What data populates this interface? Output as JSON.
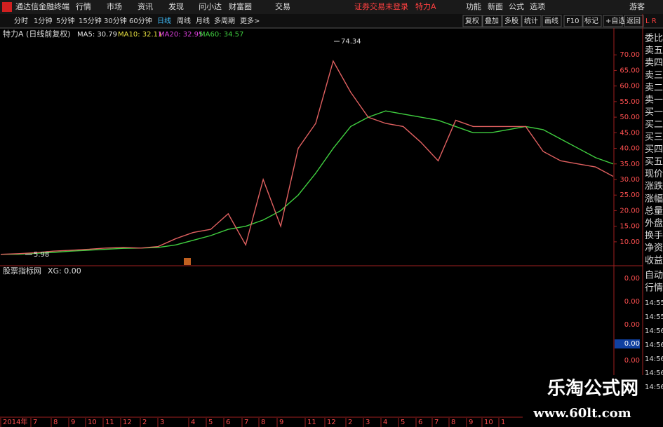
{
  "title_bar": {
    "app": "通达信金融终端",
    "menus": [
      "行情",
      "市场",
      "资讯",
      "发现",
      "问小达",
      "财富圈",
      "交易"
    ],
    "status": "证券交易未登录",
    "stock": "特力A",
    "right_menus": [
      "功能",
      "新面",
      "公式",
      "选项"
    ],
    "user": "游客"
  },
  "toolbar": {
    "periods": [
      "分时",
      "1分钟",
      "5分钟",
      "15分钟",
      "30分钟",
      "60分钟",
      "日线",
      "周线",
      "月线",
      "多周期",
      "更多>"
    ],
    "tools": [
      "复权",
      "叠加",
      "多股",
      "统计",
      "画线",
      "F10",
      "标记",
      "+自选",
      "返回"
    ]
  },
  "info": {
    "stock_label": "特力A (日线前复权)",
    "ma": [
      {
        "label": "MA5: 30.79",
        "color": "#e8e8e8"
      },
      {
        "label": "MA10: 32.11",
        "color": "#e8e040"
      },
      {
        "label": "MA20: 32.95",
        "color": "#e040e0"
      },
      {
        "label": "MA60: 34.57",
        "color": "#40d040"
      }
    ]
  },
  "main_chart": {
    "ylim": [
      3,
      75
    ],
    "yticks": [
      {
        "value": 70,
        "label": "70.00"
      },
      {
        "value": 65,
        "label": "65.00"
      },
      {
        "value": 60,
        "label": "60.00"
      },
      {
        "value": 55,
        "label": "55.00"
      },
      {
        "value": 50,
        "label": "50.00"
      },
      {
        "value": 45,
        "label": "45.00"
      },
      {
        "value": 40,
        "label": "40.00"
      },
      {
        "value": 35,
        "label": "35.00"
      },
      {
        "value": 30,
        "label": "30.00"
      },
      {
        "value": 25,
        "label": "25.00"
      },
      {
        "value": 20,
        "label": "20.00"
      },
      {
        "value": 15,
        "label": "15.00"
      },
      {
        "value": 10,
        "label": "10.00"
      }
    ],
    "high": 74.34,
    "low": 5.98,
    "price_color": "#e06060",
    "ma60_color": "#40d040",
    "price": [
      6,
      6.2,
      6.5,
      7,
      7.3,
      7.6,
      8,
      8.2,
      8,
      8.5,
      11,
      13,
      14,
      19,
      9,
      30,
      15,
      40,
      48,
      68,
      58,
      50,
      48,
      47,
      42,
      36,
      49,
      47,
      47,
      47,
      47,
      39,
      36,
      35,
      34,
      31
    ],
    "ma60": [
      6,
      6,
      6.3,
      6.6,
      7,
      7.3,
      7.6,
      7.9,
      8,
      8.2,
      9,
      10.5,
      12,
      14,
      15,
      17,
      20,
      25,
      32,
      40,
      47,
      50,
      52,
      51,
      50,
      49,
      47,
      45,
      45,
      46,
      47,
      46,
      43,
      40,
      37,
      35
    ]
  },
  "right_panel": {
    "header": "L R",
    "fields": [
      "委比",
      "卖五",
      "卖四",
      "卖三",
      "卖二",
      "卖一",
      "买一",
      "买二",
      "买三",
      "买四",
      "买五",
      "现价",
      "涨跌",
      "涨幅",
      "总量",
      "外盘",
      "换手",
      "净资",
      "收益"
    ]
  },
  "indicator": {
    "label": "股票指标网",
    "value_text": "XG: 0.00",
    "axis_labels": [
      "0.00",
      "0.00",
      "0.00",
      "0.00",
      "0.00"
    ],
    "side": [
      "自动",
      "行情"
    ],
    "times": [
      "14:55",
      "14:55",
      "14:56",
      "14:56",
      "14:56",
      "14:56",
      "14:56"
    ]
  },
  "x_axis": {
    "labels": [
      "2014年",
      "7",
      "8",
      "9",
      "10",
      "11",
      "12",
      "2",
      "3",
      "4",
      "5",
      "6",
      "7",
      "8",
      "9",
      "11",
      "12",
      "2",
      "3",
      "4",
      "5",
      "6",
      "7",
      "8",
      "9",
      "10",
      "1"
    ]
  },
  "watermark": {
    "title": "乐淘公式网",
    "url": "www.60lt.com"
  }
}
